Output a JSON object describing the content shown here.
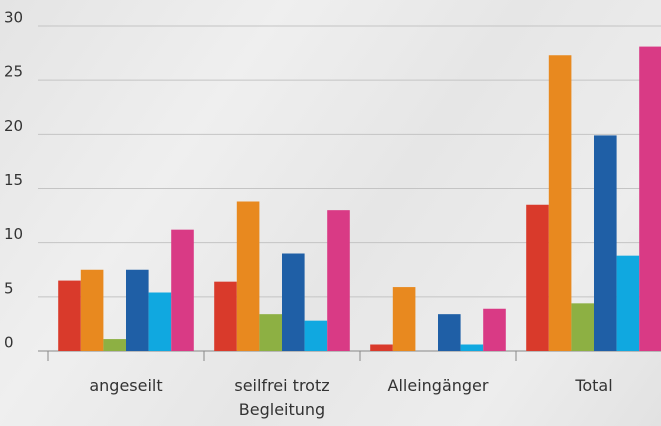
{
  "chart_data": {
    "type": "bar",
    "categories": [
      "angeseilt",
      "seilfrei trotz Begleitung",
      "Alleingänger",
      "Total"
    ],
    "series": [
      {
        "color": "#d93a2b",
        "values": [
          6.5,
          6.4,
          0.6,
          13.5
        ]
      },
      {
        "color": "#e8891f",
        "values": [
          7.5,
          13.8,
          5.9,
          27.3
        ]
      },
      {
        "color": "#8db043",
        "values": [
          1.1,
          3.4,
          0,
          4.4
        ]
      },
      {
        "color": "#1f5fa6",
        "values": [
          7.5,
          9.0,
          3.4,
          19.9
        ]
      },
      {
        "color": "#10a8e0",
        "values": [
          5.4,
          2.8,
          0.6,
          8.8
        ]
      },
      {
        "color": "#d93a85",
        "values": [
          11.2,
          13.0,
          3.9,
          28.1
        ]
      }
    ],
    "ylim": [
      0,
      30
    ],
    "yticks": [
      0,
      5,
      10,
      15,
      20,
      25,
      30
    ],
    "grid": true
  }
}
